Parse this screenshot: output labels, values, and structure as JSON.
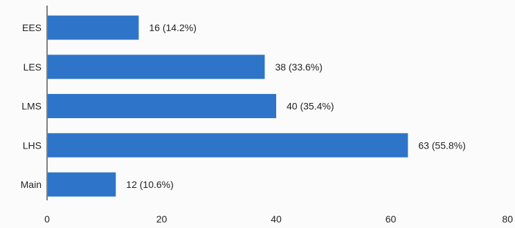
{
  "chart_data": {
    "type": "bar",
    "orientation": "horizontal",
    "categories": [
      "EES",
      "LES",
      "LMS",
      "LHS",
      "Main"
    ],
    "values": [
      16,
      38,
      40,
      63,
      12
    ],
    "data_labels": [
      "16 (14.2%)",
      "38 (33.6%)",
      "40 (35.4%)",
      "63 (55.8%)",
      "12 (10.6%)"
    ],
    "x_ticks": [
      "0",
      "20",
      "40",
      "60",
      "80"
    ],
    "xlim": [
      0,
      80
    ],
    "grid": false,
    "legend": "none",
    "colors": {
      "bar": "#2e75c9",
      "axis": "#2b2b2b",
      "text": "#222222"
    }
  }
}
